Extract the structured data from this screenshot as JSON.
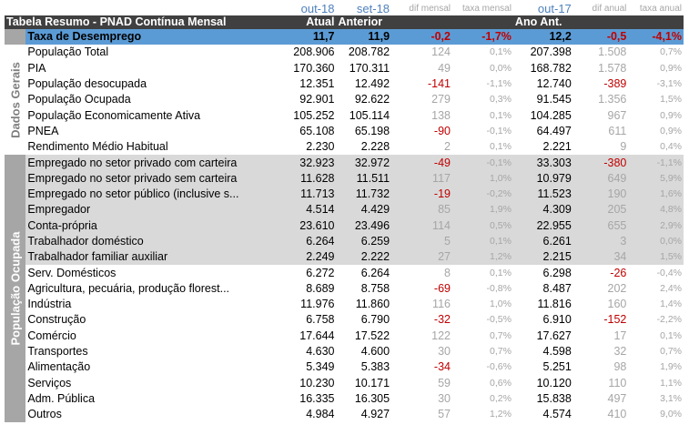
{
  "header": {
    "title": "Tabela Resumo - PNAD Contínua Mensal",
    "periods": [
      "out-18",
      "set-18",
      "dif mensal",
      "taxa mensal",
      "out-17",
      "dif anual",
      "taxa anual"
    ],
    "cols": [
      "Atual",
      "Anterior",
      "Ano Ant."
    ]
  },
  "groups": {
    "dados_gerais": "Dados Gerais",
    "populacao_ocupada": "População Ocupada"
  },
  "highlight": {
    "label": "Taxa de Desemprego",
    "atual": "11,7",
    "anterior": "11,9",
    "dif_mensal": "-0,2",
    "taxa_mensal": "-1,7%",
    "ano_ant": "12,2",
    "dif_anual": "-0,5",
    "taxa_anual": "-4,1%"
  },
  "rows": [
    {
      "label": "População Total",
      "atual": "208.906",
      "anterior": "208.782",
      "dif_mensal": "124",
      "taxa_mensal": "0,1%",
      "ano_ant": "207.398",
      "dif_anual": "1.508",
      "taxa_anual": "0,7%"
    },
    {
      "label": "PIA",
      "atual": "170.360",
      "anterior": "170.311",
      "dif_mensal": "49",
      "taxa_mensal": "0,0%",
      "ano_ant": "168.782",
      "dif_anual": "1.578",
      "taxa_anual": "0,9%"
    },
    {
      "label": "População desocupada",
      "atual": "12.351",
      "anterior": "12.492",
      "dif_mensal": "-141",
      "taxa_mensal": "-1,1%",
      "ano_ant": "12.740",
      "dif_anual": "-389",
      "taxa_anual": "-3,1%"
    },
    {
      "label": "População Ocupada",
      "atual": "92.901",
      "anterior": "92.622",
      "dif_mensal": "279",
      "taxa_mensal": "0,3%",
      "ano_ant": "91.545",
      "dif_anual": "1.356",
      "taxa_anual": "1,5%"
    },
    {
      "label": "População Economicamente Ativa",
      "atual": "105.252",
      "anterior": "105.114",
      "dif_mensal": "138",
      "taxa_mensal": "0,1%",
      "ano_ant": "104.285",
      "dif_anual": "967",
      "taxa_anual": "0,9%"
    },
    {
      "label": "PNEA",
      "atual": "65.108",
      "anterior": "65.198",
      "dif_mensal": "-90",
      "taxa_mensal": "-0,1%",
      "ano_ant": "64.497",
      "dif_anual": "611",
      "taxa_anual": "0,9%"
    },
    {
      "label": "Rendimento Médio Habitual",
      "atual": "2.230",
      "anterior": "2.228",
      "dif_mensal": "2",
      "taxa_mensal": "0,1%",
      "ano_ant": "2.221",
      "dif_anual": "9",
      "taxa_anual": "0,4%"
    },
    {
      "label": "Empregado no setor privado com carteira",
      "atual": "32.923",
      "anterior": "32.972",
      "dif_mensal": "-49",
      "taxa_mensal": "-0,1%",
      "ano_ant": "33.303",
      "dif_anual": "-380",
      "taxa_anual": "-1,1%"
    },
    {
      "label": "Empregado no setor privado sem carteira",
      "atual": "11.628",
      "anterior": "11.511",
      "dif_mensal": "117",
      "taxa_mensal": "1,0%",
      "ano_ant": "10.979",
      "dif_anual": "649",
      "taxa_anual": "5,9%"
    },
    {
      "label": "Empregado no setor público (inclusive s...",
      "atual": "11.713",
      "anterior": "11.732",
      "dif_mensal": "-19",
      "taxa_mensal": "-0,2%",
      "ano_ant": "11.523",
      "dif_anual": "190",
      "taxa_anual": "1,6%"
    },
    {
      "label": "Empregador",
      "atual": "4.514",
      "anterior": "4.429",
      "dif_mensal": "85",
      "taxa_mensal": "1,9%",
      "ano_ant": "4.309",
      "dif_anual": "205",
      "taxa_anual": "4,8%"
    },
    {
      "label": "Conta-própria",
      "atual": "23.610",
      "anterior": "23.496",
      "dif_mensal": "114",
      "taxa_mensal": "0,5%",
      "ano_ant": "22.955",
      "dif_anual": "655",
      "taxa_anual": "2,9%"
    },
    {
      "label": "Trabalhador doméstico",
      "atual": "6.264",
      "anterior": "6.259",
      "dif_mensal": "5",
      "taxa_mensal": "0,1%",
      "ano_ant": "6.261",
      "dif_anual": "3",
      "taxa_anual": "0,0%"
    },
    {
      "label": "Trabalhador familiar auxiliar",
      "atual": "2.249",
      "anterior": "2.222",
      "dif_mensal": "27",
      "taxa_mensal": "1,2%",
      "ano_ant": "2.215",
      "dif_anual": "34",
      "taxa_anual": "1,5%"
    },
    {
      "label": "Serv. Domésticos",
      "atual": "6.272",
      "anterior": "6.264",
      "dif_mensal": "8",
      "taxa_mensal": "0,1%",
      "ano_ant": "6.298",
      "dif_anual": "-26",
      "taxa_anual": "-0,4%"
    },
    {
      "label": "Agricultura, pecuária, produção florest...",
      "atual": "8.689",
      "anterior": "8.758",
      "dif_mensal": "-69",
      "taxa_mensal": "-0,8%",
      "ano_ant": "8.487",
      "dif_anual": "202",
      "taxa_anual": "2,4%"
    },
    {
      "label": "Indústria",
      "atual": "11.976",
      "anterior": "11.860",
      "dif_mensal": "116",
      "taxa_mensal": "1,0%",
      "ano_ant": "11.816",
      "dif_anual": "160",
      "taxa_anual": "1,4%"
    },
    {
      "label": "Construção",
      "atual": "6.758",
      "anterior": "6.790",
      "dif_mensal": "-32",
      "taxa_mensal": "-0,5%",
      "ano_ant": "6.910",
      "dif_anual": "-152",
      "taxa_anual": "-2,2%"
    },
    {
      "label": "Comércio",
      "atual": "17.644",
      "anterior": "17.522",
      "dif_mensal": "122",
      "taxa_mensal": "0,7%",
      "ano_ant": "17.627",
      "dif_anual": "17",
      "taxa_anual": "0,1%"
    },
    {
      "label": "Transportes",
      "atual": "4.630",
      "anterior": "4.600",
      "dif_mensal": "30",
      "taxa_mensal": "0,7%",
      "ano_ant": "4.598",
      "dif_anual": "32",
      "taxa_anual": "0,7%"
    },
    {
      "label": "Alimentação",
      "atual": "5.349",
      "anterior": "5.383",
      "dif_mensal": "-34",
      "taxa_mensal": "-0,6%",
      "ano_ant": "5.251",
      "dif_anual": "98",
      "taxa_anual": "1,9%"
    },
    {
      "label": "Serviços",
      "atual": "10.230",
      "anterior": "10.171",
      "dif_mensal": "59",
      "taxa_mensal": "0,6%",
      "ano_ant": "10.120",
      "dif_anual": "110",
      "taxa_anual": "1,1%"
    },
    {
      "label": "Adm. Pública",
      "atual": "16.335",
      "anterior": "16.305",
      "dif_mensal": "30",
      "taxa_mensal": "0,2%",
      "ano_ant": "15.838",
      "dif_anual": "497",
      "taxa_anual": "3,1%"
    },
    {
      "label": "Outros",
      "atual": "4.984",
      "anterior": "4.927",
      "dif_mensal": "57",
      "taxa_mensal": "1,2%",
      "ano_ant": "4.574",
      "dif_anual": "410",
      "taxa_anual": "9,0%"
    }
  ]
}
